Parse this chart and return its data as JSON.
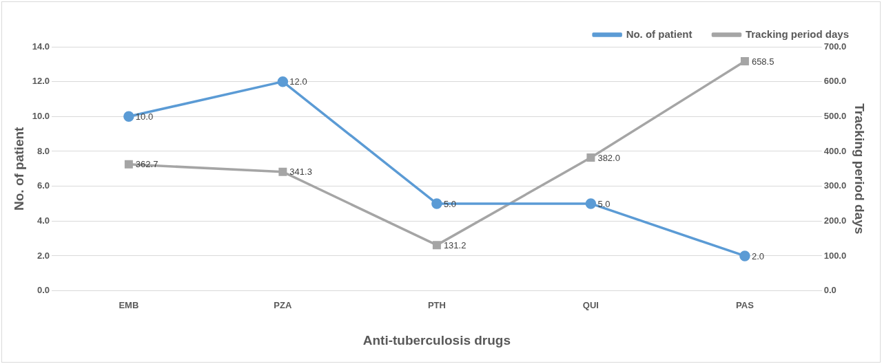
{
  "chart_data": {
    "type": "line",
    "xlabel": "Anti-tuberculosis drugs",
    "ylabel": "No. of patient",
    "y2label": "Tracking period days",
    "categories": [
      "EMB",
      "PZA",
      "PTH",
      "QUI",
      "PAS"
    ],
    "series": [
      {
        "name": "No. of patient",
        "color": "#5b9bd5",
        "marker": "circle",
        "values": [
          10,
          12,
          5,
          5,
          2
        ],
        "value_labels": [
          "10.0",
          "12.0",
          "5.0",
          "5.0",
          "2.0"
        ]
      },
      {
        "name": "Tracking period days",
        "color": "#a5a5a5",
        "marker": "square",
        "axis": "y2",
        "values": [
          362.7,
          341.3,
          131.2,
          382.0,
          658.5
        ],
        "value_labels": [
          "362.7",
          "341.3",
          "131.2",
          "382.0",
          "658.5"
        ]
      }
    ],
    "ylim": [
      0,
      14
    ],
    "yticks": [
      {
        "value": 0,
        "label": "0.0"
      },
      {
        "value": 2,
        "label": "2.0"
      },
      {
        "value": 4,
        "label": "4.0"
      },
      {
        "value": 6,
        "label": "6.0"
      },
      {
        "value": 8,
        "label": "8.0"
      },
      {
        "value": 10,
        "label": "10.0"
      },
      {
        "value": 12,
        "label": "12.0"
      },
      {
        "value": 14,
        "label": "14.0"
      }
    ],
    "y2lim": [
      0,
      700
    ],
    "y2ticks": [
      {
        "value": 0,
        "label": "0.0"
      },
      {
        "value": 100,
        "label": "100.0"
      },
      {
        "value": 200,
        "label": "200.0"
      },
      {
        "value": 300,
        "label": "300.0"
      },
      {
        "value": 400,
        "label": "400.0"
      },
      {
        "value": 500,
        "label": "500.0"
      },
      {
        "value": 600,
        "label": "600.0"
      },
      {
        "value": 700,
        "label": "700.0"
      }
    ],
    "grid": "y",
    "legend": "top right",
    "line_style": "solid"
  }
}
